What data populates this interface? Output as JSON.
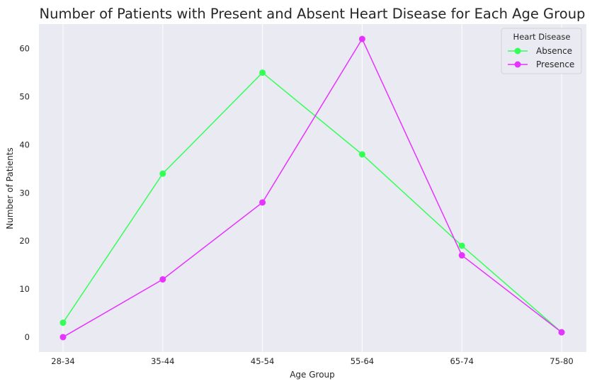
{
  "chart_data": {
    "type": "line",
    "title": "Number of Patients with Present and Absent Heart Disease for Each Age Group",
    "xlabel": "Age Group",
    "ylabel": "Number of Patients",
    "categories": [
      "28-34",
      "35-44",
      "45-54",
      "55-64",
      "65-74",
      "75-80"
    ],
    "ylim": [
      -3.1,
      65.1
    ],
    "yticks": [
      0,
      10,
      20,
      30,
      40,
      50,
      60
    ],
    "grid": "vertical",
    "legend": {
      "title": "Heart Disease",
      "placement": "top-right"
    },
    "series": [
      {
        "name": "Absence",
        "values": [
          3,
          34,
          55,
          38,
          19,
          1
        ],
        "color": "#33ff57"
      },
      {
        "name": "Presence",
        "values": [
          0,
          12,
          28,
          62,
          17,
          1
        ],
        "color": "#e633ff"
      }
    ],
    "background": "#eaeaf2"
  }
}
